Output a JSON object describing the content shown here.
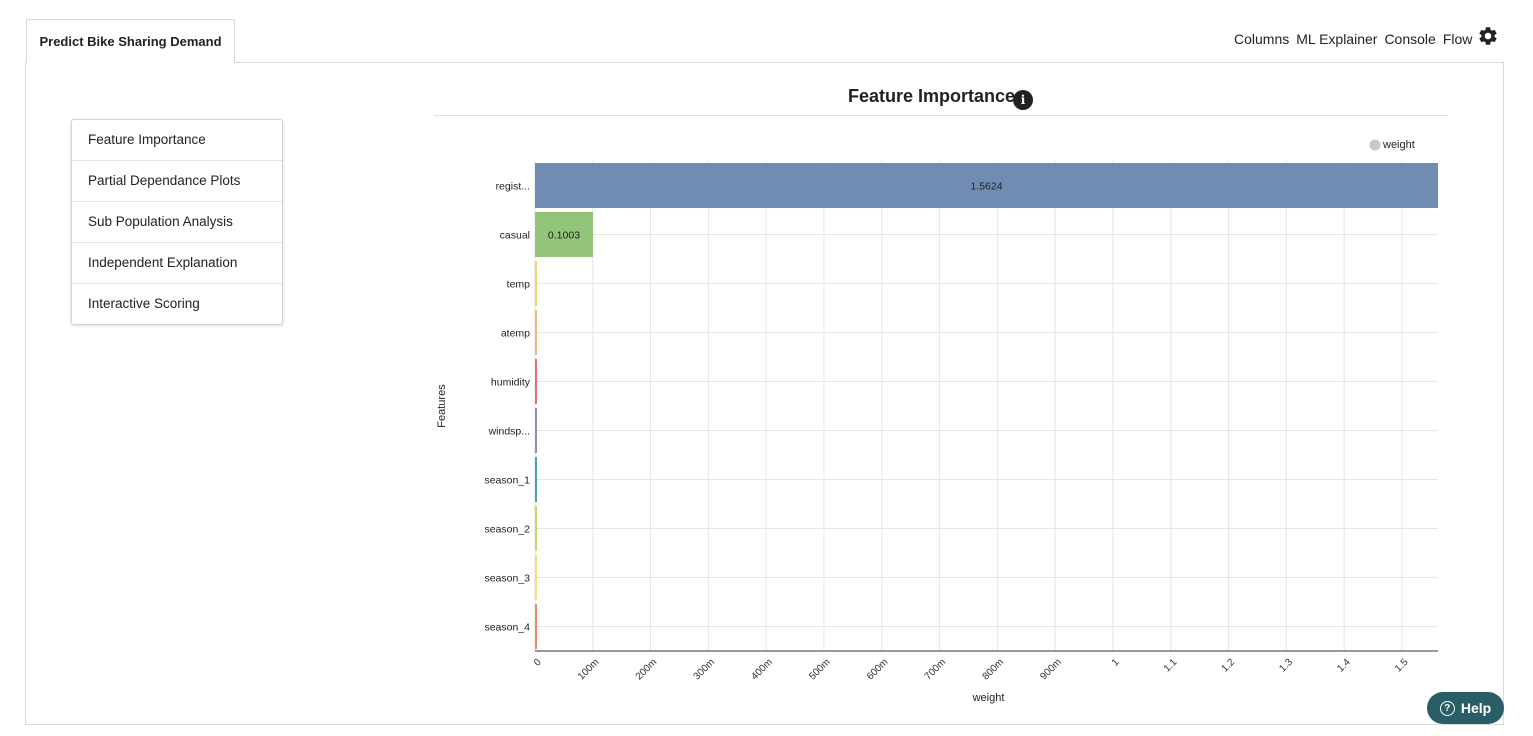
{
  "tab": {
    "label": "Predict Bike Sharing Demand"
  },
  "topnav": {
    "links": [
      "Columns",
      "ML Explainer",
      "Console",
      "Flow"
    ],
    "settings_icon": "gear-icon"
  },
  "sidebar": {
    "items": [
      {
        "label": "Feature Importance"
      },
      {
        "label": "Partial Dependance Plots"
      },
      {
        "label": "Sub Population Analysis"
      },
      {
        "label": "Independent Explanation"
      },
      {
        "label": "Interactive Scoring"
      }
    ]
  },
  "chart_header": {
    "title": "Feature Importance",
    "info_icon": "i"
  },
  "help": {
    "label": "Help",
    "icon": "?"
  },
  "chart_data": {
    "type": "bar",
    "orientation": "horizontal",
    "title": "Feature Importance",
    "xlabel": "weight",
    "ylabel": "Features",
    "legend": {
      "label": "weight",
      "placement": "top-right",
      "color": "#c8c8c8"
    },
    "categories": [
      "regist...",
      "casual",
      "temp",
      "atemp",
      "humidity",
      "windsp...",
      "season_1",
      "season_2",
      "season_3",
      "season_4"
    ],
    "values": [
      1.5624,
      0.1003,
      0.002,
      0.002,
      0.002,
      0.002,
      0.002,
      0.002,
      0.002,
      0.002
    ],
    "data_labels": [
      "1.5624",
      "0.1003",
      "",
      "",
      "",
      "",
      "",
      "",
      "",
      ""
    ],
    "colors": [
      "#718cb3",
      "#92c47a",
      "#f2d46f",
      "#f0b87a",
      "#e0707a",
      "#9e86c0",
      "#4aa3a7",
      "#c8d96a",
      "#f4de7f",
      "#ec8a6f"
    ],
    "xlim": [
      0,
      1.5624
    ],
    "xticks": [
      0,
      0.1,
      0.2,
      0.3,
      0.4,
      0.5,
      0.6,
      0.7,
      0.8,
      0.9,
      1.0,
      1.1,
      1.2,
      1.3,
      1.4,
      1.5
    ],
    "xtick_labels": [
      "0",
      "100m",
      "200m",
      "300m",
      "400m",
      "500m",
      "600m",
      "700m",
      "800m",
      "900m",
      "1",
      "1.1",
      "1.2",
      "1.3",
      "1.4",
      "1.5"
    ],
    "grid": true
  }
}
